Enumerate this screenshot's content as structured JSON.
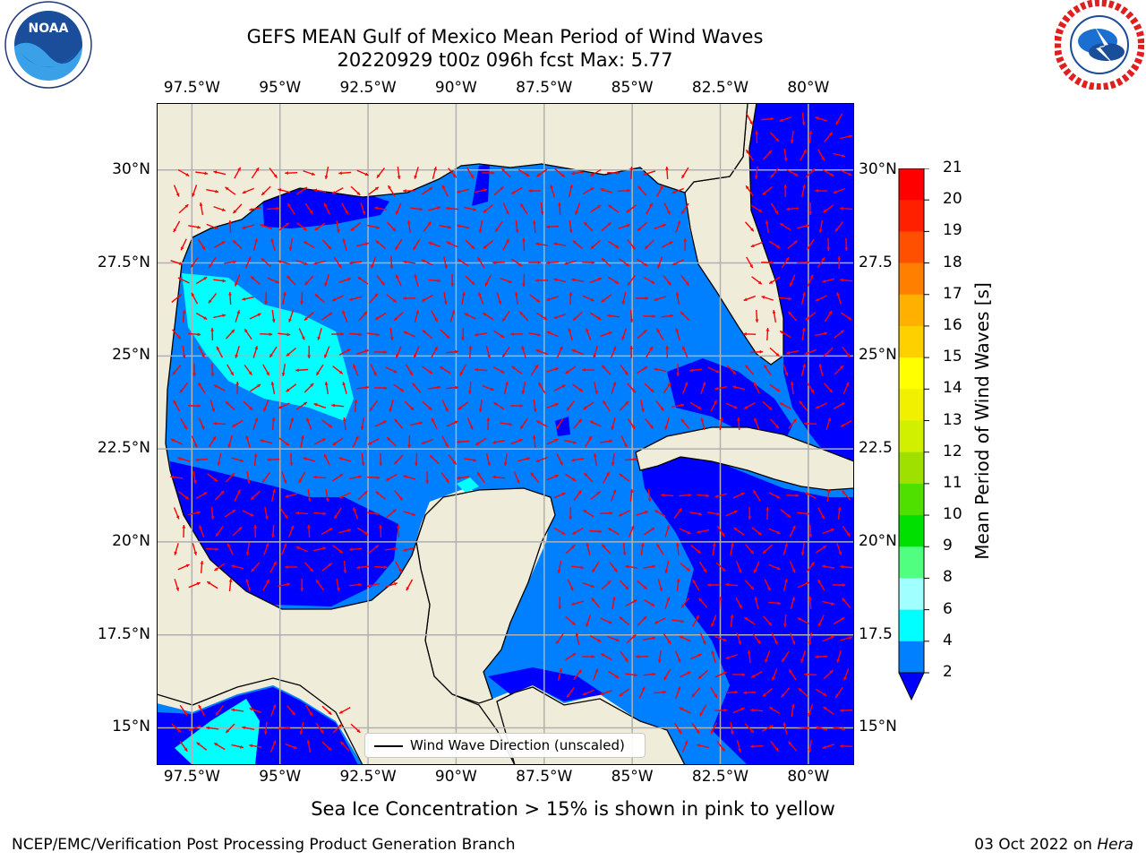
{
  "header": {
    "title_line1": "GEFS MEAN Gulf of Mexico Mean Period of Wind Waves",
    "title_line2": "20220929 t00z 096h fcst   Max: 5.77"
  },
  "logos": {
    "left_text": "NOAA",
    "left_ring_text": "NATIONAL OCEANIC AND ATMOSPHERIC ADMINISTRATION · U.S. DEPARTMENT OF COMMERCE",
    "right_ring_text": "NATIONAL WEATHER SERVICE"
  },
  "map": {
    "lon_range": [
      -98.5,
      -78.7
    ],
    "lat_range": [
      14.0,
      31.8
    ],
    "lon_ticks": [
      "97.5°W",
      "95°W",
      "92.5°W",
      "90°W",
      "87.5°W",
      "85°W",
      "82.5°W",
      "80°W"
    ],
    "lat_ticks_left": [
      "30°N",
      "27.5°N",
      "25°N",
      "22.5°N",
      "20°N",
      "17.5°N",
      "15°N"
    ],
    "lat_ticks_right": [
      "30°N",
      "27.5",
      "25°N",
      "22.5",
      "20°N",
      "17.5",
      "15°N"
    ],
    "legend_label": "Wind Wave Direction (unscaled)",
    "colors": {
      "land": "#efedda",
      "ocean_low": "#0080ff",
      "ocean_lowest": "#0000ff",
      "ocean_4_6": "#00ffff",
      "arrow": "#ff0000",
      "grid": "#b0b0b0"
    }
  },
  "colorbar": {
    "label": "Mean Period of Wind Waves [s]",
    "ticks": [
      "2",
      "4",
      "6",
      "8",
      "9",
      "10",
      "11",
      "12",
      "13",
      "14",
      "15",
      "16",
      "17",
      "18",
      "19",
      "20",
      "21"
    ],
    "colors": [
      "#0080ff",
      "#00ffff",
      "#40ffff",
      "#80ffff",
      "#a0ffff",
      "#50ff80",
      "#00e000",
      "#50e000",
      "#a0e000",
      "#d0f000",
      "#f0f000",
      "#ffff00",
      "#ffd000",
      "#ffb000",
      "#ff8000",
      "#ff5000",
      "#ff2000",
      "#ff0000"
    ],
    "under_color": "#0000ff"
  },
  "footer": {
    "note": "Sea Ice Concentration > 15% is shown in pink to yellow",
    "left": "NCEP/EMC/Verification Post Processing Product Generation Branch",
    "right_date": "03 Oct 2022 on ",
    "right_host": "Hera"
  }
}
